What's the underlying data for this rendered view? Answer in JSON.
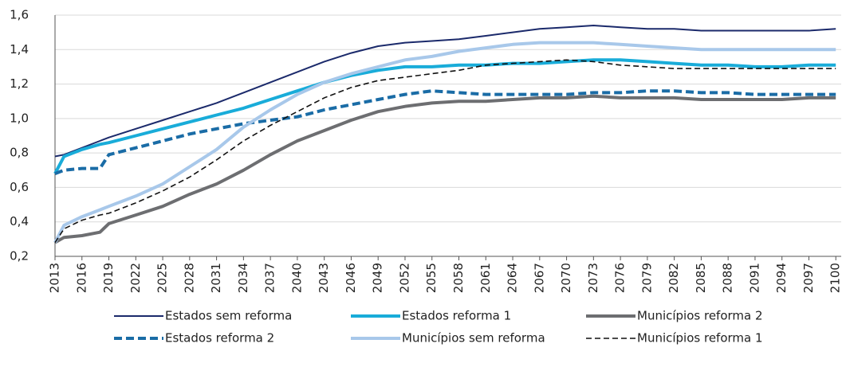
{
  "chart_data": {
    "type": "line",
    "x": [
      2013,
      2014,
      2016,
      2018,
      2019,
      2022,
      2025,
      2028,
      2031,
      2034,
      2037,
      2040,
      2043,
      2046,
      2049,
      2052,
      2055,
      2058,
      2061,
      2064,
      2067,
      2070,
      2073,
      2076,
      2079,
      2082,
      2085,
      2088,
      2091,
      2094,
      2097,
      2100
    ],
    "xlim": [
      2013,
      2100.6
    ],
    "xticks": [
      2013,
      2016,
      2019,
      2022,
      2025,
      2028,
      2031,
      2034,
      2037,
      2040,
      2043,
      2046,
      2049,
      2052,
      2055,
      2058,
      2061,
      2064,
      2067,
      2070,
      2073,
      2076,
      2079,
      2082,
      2085,
      2088,
      2091,
      2094,
      2097,
      2100
    ],
    "ylim": [
      0.2,
      1.6
    ],
    "yticks": [
      {
        "value": 0.2,
        "label": "0,2"
      },
      {
        "value": 0.4,
        "label": "0,4"
      },
      {
        "value": 0.6,
        "label": "0,6"
      },
      {
        "value": 0.8,
        "label": "0,8"
      },
      {
        "value": 1.0,
        "label": "1,0"
      },
      {
        "value": 1.2,
        "label": "1,2"
      },
      {
        "value": 1.4,
        "label": "1,4"
      },
      {
        "value": 1.6,
        "label": "1,6"
      }
    ],
    "grid": true,
    "legend": "bottom",
    "series": [
      {
        "name": "Estados sem reforma",
        "color": "#1b2a6b",
        "linewidth": 2,
        "style": "solid",
        "values": [
          0.78,
          0.79,
          0.83,
          0.87,
          0.89,
          0.94,
          0.99,
          1.04,
          1.09,
          1.15,
          1.21,
          1.27,
          1.33,
          1.38,
          1.42,
          1.44,
          1.45,
          1.46,
          1.48,
          1.5,
          1.52,
          1.53,
          1.54,
          1.53,
          1.52,
          1.52,
          1.51,
          1.51,
          1.51,
          1.51,
          1.51,
          1.52
        ]
      },
      {
        "name": "Estados reforma 1",
        "color": "#19acd9",
        "linewidth": 4,
        "style": "solid",
        "values": [
          0.68,
          0.78,
          0.82,
          0.85,
          0.86,
          0.9,
          0.94,
          0.98,
          1.02,
          1.06,
          1.11,
          1.16,
          1.21,
          1.25,
          1.28,
          1.3,
          1.3,
          1.31,
          1.31,
          1.32,
          1.32,
          1.33,
          1.34,
          1.34,
          1.33,
          1.32,
          1.31,
          1.31,
          1.3,
          1.3,
          1.31,
          1.31
        ]
      },
      {
        "name": "Municípios reforma 2",
        "color": "#6d6e71",
        "linewidth": 4,
        "style": "solid",
        "values": [
          0.28,
          0.31,
          0.32,
          0.34,
          0.39,
          0.44,
          0.49,
          0.56,
          0.62,
          0.7,
          0.79,
          0.87,
          0.93,
          0.99,
          1.04,
          1.07,
          1.09,
          1.1,
          1.1,
          1.11,
          1.12,
          1.12,
          1.13,
          1.12,
          1.12,
          1.12,
          1.11,
          1.11,
          1.11,
          1.11,
          1.12,
          1.12
        ]
      },
      {
        "name": "Estados reforma 2",
        "color": "#1a6ca6",
        "linewidth": 4,
        "style": "dashed",
        "values": [
          0.68,
          0.7,
          0.71,
          0.71,
          0.79,
          0.83,
          0.87,
          0.91,
          0.94,
          0.97,
          0.99,
          1.01,
          1.05,
          1.08,
          1.11,
          1.14,
          1.16,
          1.15,
          1.14,
          1.14,
          1.14,
          1.14,
          1.15,
          1.15,
          1.16,
          1.16,
          1.15,
          1.15,
          1.14,
          1.14,
          1.14,
          1.14
        ]
      },
      {
        "name": "Municípios sem reforma",
        "color": "#a8c8ea",
        "linewidth": 4,
        "style": "solid",
        "values": [
          0.28,
          0.38,
          0.43,
          0.47,
          0.49,
          0.55,
          0.62,
          0.72,
          0.82,
          0.95,
          1.05,
          1.14,
          1.21,
          1.26,
          1.3,
          1.34,
          1.36,
          1.39,
          1.41,
          1.43,
          1.44,
          1.44,
          1.44,
          1.43,
          1.42,
          1.41,
          1.4,
          1.4,
          1.4,
          1.4,
          1.4,
          1.4
        ]
      },
      {
        "name": "Municípios reforma 1",
        "color": "#111111",
        "linewidth": 1.6,
        "style": "dashed",
        "values": [
          0.28,
          0.36,
          0.41,
          0.44,
          0.45,
          0.51,
          0.58,
          0.66,
          0.76,
          0.87,
          0.96,
          1.04,
          1.12,
          1.18,
          1.22,
          1.24,
          1.26,
          1.28,
          1.31,
          1.32,
          1.33,
          1.34,
          1.33,
          1.31,
          1.3,
          1.29,
          1.29,
          1.29,
          1.29,
          1.29,
          1.29,
          1.29
        ]
      }
    ]
  }
}
